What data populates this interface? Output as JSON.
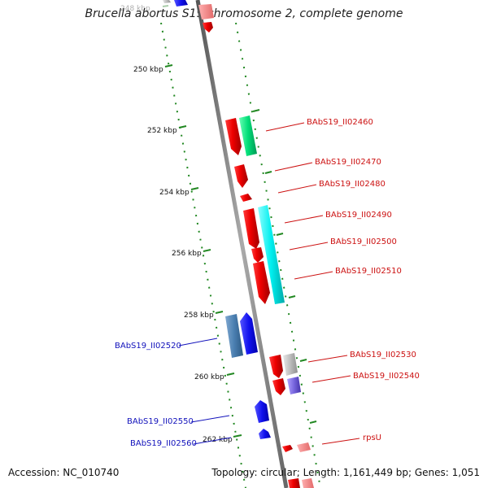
{
  "title": "Brucella abortus S19 chromosome 2, complete genome",
  "footer": {
    "accession": "Accession: NC_010740",
    "summary": "Topology: circular; Length: 1,161,449 bp; Genes: 1,051"
  },
  "colors": {
    "backbone": "#8a8a8a",
    "scale": "#228822",
    "forward_label": "#cc1111",
    "reverse_label": "#1111bb"
  },
  "scale_ticks": [
    {
      "kbp": 248,
      "label": "248 kbp",
      "faded": true
    },
    {
      "kbp": 250,
      "label": "250 kbp"
    },
    {
      "kbp": 252,
      "label": "252 kbp"
    },
    {
      "kbp": 254,
      "label": "254 kbp"
    },
    {
      "kbp": 256,
      "label": "256 kbp"
    },
    {
      "kbp": 258,
      "label": "258 kbp"
    },
    {
      "kbp": 260,
      "label": "260 kbp"
    },
    {
      "kbp": 262,
      "label": "262 kbp"
    }
  ],
  "gene_labels": [
    {
      "label": "BAbS19_II02460",
      "side": "right"
    },
    {
      "label": "BAbS19_II02470",
      "side": "right"
    },
    {
      "label": "BAbS19_II02480",
      "side": "right"
    },
    {
      "label": "BAbS19_II02490",
      "side": "right"
    },
    {
      "label": "BAbS19_II02500",
      "side": "right"
    },
    {
      "label": "BAbS19_II02510",
      "side": "right"
    },
    {
      "label": "BAbS19_II02530",
      "side": "right"
    },
    {
      "label": "BAbS19_II02540",
      "side": "right"
    },
    {
      "label": "rpsU",
      "side": "right"
    },
    {
      "label": "BAbS19_II02520",
      "side": "left"
    },
    {
      "label": "BAbS19_II02550",
      "side": "left"
    },
    {
      "label": "BAbS19_II02560",
      "side": "left"
    }
  ]
}
